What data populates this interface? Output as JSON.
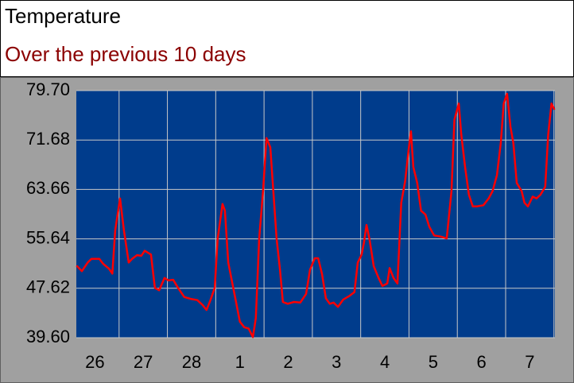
{
  "chart_data": {
    "type": "line",
    "title": "Temperature",
    "subtitle": "Over the previous 10 days",
    "series": [
      {
        "name": "Temperature",
        "color": "#ff0000",
        "x": [
          0.12,
          0.23,
          0.35,
          0.43,
          0.59,
          0.67,
          0.79,
          0.86,
          0.92,
          1.02,
          1.1,
          1.2,
          1.27,
          1.37,
          1.46,
          1.53,
          1.66,
          1.74,
          1.83,
          1.94,
          2.02,
          2.12,
          2.22,
          2.35,
          2.48,
          2.62,
          2.73,
          2.81,
          2.89,
          2.98,
          3.04,
          3.14,
          3.19,
          3.26,
          3.34,
          3.42,
          3.5,
          3.59,
          3.68,
          3.77,
          3.83,
          3.9,
          3.98,
          4.05,
          4.13,
          4.18,
          4.26,
          4.33,
          4.39,
          4.49,
          4.62,
          4.75,
          4.87,
          4.95,
          5.05,
          5.12,
          5.2,
          5.28,
          5.36,
          5.44,
          5.53,
          5.64,
          5.77,
          5.87,
          5.94,
          6.02,
          6.07,
          6.12,
          6.18,
          6.27,
          6.37,
          6.45,
          6.55,
          6.6,
          6.68,
          6.76,
          6.84,
          6.92,
          6.99,
          7.04,
          7.09,
          7.17,
          7.25,
          7.34,
          7.42,
          7.52,
          7.66,
          7.78,
          7.88,
          7.94,
          8.03,
          8.08,
          8.16,
          8.24,
          8.32,
          8.4,
          8.54,
          8.65,
          8.73,
          8.82,
          8.9,
          8.96,
          9.03,
          9.1,
          9.16,
          9.23,
          9.33,
          9.39,
          9.46,
          9.56,
          9.64,
          9.72,
          9.82,
          9.88,
          9.95,
          10.01
        ],
        "values": [
          51.3,
          50.4,
          51.8,
          52.4,
          52.4,
          51.6,
          50.8,
          50.0,
          57.0,
          62.2,
          57.0,
          51.8,
          52.4,
          53.0,
          52.9,
          53.7,
          53.1,
          47.7,
          47.3,
          49.3,
          48.9,
          49.0,
          47.7,
          46.2,
          45.9,
          45.7,
          44.9,
          44.1,
          45.7,
          47.7,
          55.7,
          61.3,
          60.2,
          51.8,
          48.6,
          45.4,
          42.2,
          41.3,
          41.1,
          39.7,
          42.8,
          55.7,
          63.4,
          72.0,
          70.5,
          64.7,
          55.7,
          50.6,
          45.4,
          45.1,
          45.4,
          45.3,
          46.7,
          50.6,
          52.5,
          52.5,
          49.9,
          46.0,
          45.1,
          45.3,
          44.6,
          45.8,
          46.4,
          47.0,
          51.8,
          53.1,
          55.1,
          57.9,
          55.7,
          51.2,
          49.3,
          48.0,
          48.4,
          50.9,
          49.3,
          48.4,
          61.5,
          65.0,
          69.9,
          73.1,
          67.3,
          64.7,
          60.2,
          59.6,
          57.6,
          56.2,
          56.0,
          55.7,
          63.4,
          75.0,
          77.6,
          72.7,
          67.3,
          62.8,
          60.9,
          60.9,
          61.1,
          62.2,
          63.4,
          66.0,
          71.2,
          77.6,
          79.2,
          73.8,
          71.2,
          64.7,
          63.4,
          61.5,
          60.9,
          62.5,
          62.2,
          62.8,
          64.1,
          72.5,
          77.6,
          76.6
        ]
      }
    ],
    "xlim": [
      0.115,
      10.02
    ],
    "xticks": [
      {
        "value": 0.5,
        "label": "26"
      },
      {
        "value": 1.5,
        "label": "27"
      },
      {
        "value": 2.5,
        "label": "28"
      },
      {
        "value": 3.5,
        "label": "1"
      },
      {
        "value": 4.5,
        "label": "2"
      },
      {
        "value": 5.5,
        "label": "3"
      },
      {
        "value": 6.5,
        "label": "4"
      },
      {
        "value": 7.5,
        "label": "5"
      },
      {
        "value": 8.5,
        "label": "6"
      },
      {
        "value": 9.5,
        "label": "7"
      }
    ],
    "ylim": [
      39.6,
      79.7
    ],
    "yticks": [
      {
        "value": 39.6,
        "label": "39.60"
      },
      {
        "value": 47.62,
        "label": "47.62"
      },
      {
        "value": 55.64,
        "label": "55.64"
      },
      {
        "value": 63.66,
        "label": "63.66"
      },
      {
        "value": 71.68,
        "label": "71.68"
      },
      {
        "value": 79.7,
        "label": "79.70"
      }
    ],
    "grid": true,
    "background": "#003c8c"
  }
}
